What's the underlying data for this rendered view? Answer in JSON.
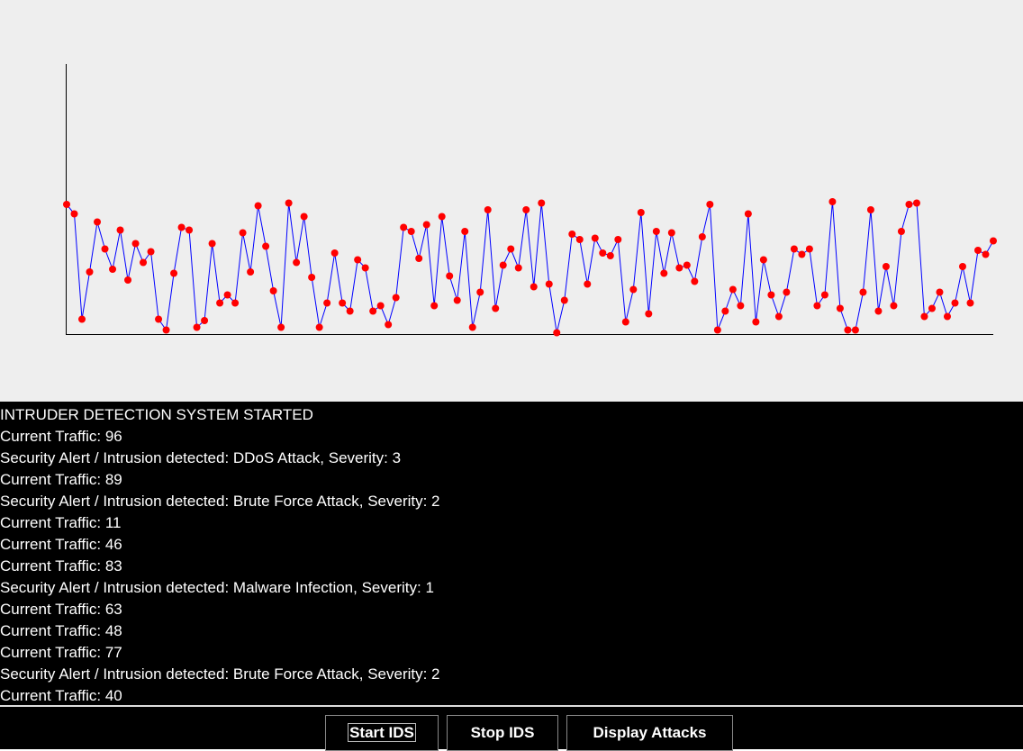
{
  "chart_data": {
    "type": "line",
    "color": "#0000ff",
    "marker_color": "#ff0000",
    "ylim": [
      0,
      200
    ],
    "values": [
      96,
      89,
      11,
      46,
      83,
      63,
      48,
      77,
      40,
      67,
      53,
      61,
      11,
      3,
      45,
      79,
      77,
      5,
      10,
      67,
      23,
      29,
      23,
      75,
      46,
      95,
      65,
      32,
      5,
      97,
      53,
      87,
      42,
      5,
      23,
      60,
      23,
      17,
      55,
      49,
      17,
      21,
      7,
      27,
      79,
      76,
      56,
      81,
      21,
      87,
      43,
      25,
      76,
      5,
      31,
      92,
      19,
      51,
      63,
      49,
      92,
      35,
      97,
      37,
      1,
      25,
      74,
      70,
      37,
      71,
      60,
      58,
      70,
      9,
      33,
      90,
      15,
      76,
      45,
      75,
      49,
      51,
      39,
      72,
      96,
      3,
      17,
      33,
      21,
      89,
      9,
      55,
      29,
      13,
      31,
      63,
      59,
      63,
      21,
      29,
      98,
      19,
      3,
      3,
      31,
      92,
      17,
      50,
      21,
      76,
      96,
      97,
      13,
      19,
      31,
      13,
      23,
      50,
      23,
      62,
      59,
      69
    ]
  },
  "log": [
    "INTRUDER DETECTION SYSTEM STARTED",
    "Current Traffic: 96",
    "Security Alert / Intrusion detected: DDoS Attack, Severity: 3",
    "Current Traffic: 89",
    "Security Alert / Intrusion detected: Brute Force Attack, Severity: 2",
    "Current Traffic: 11",
    "Current Traffic: 46",
    "Current Traffic: 83",
    "Security Alert / Intrusion detected: Malware Infection, Severity: 1",
    "Current Traffic: 63",
    "Current Traffic: 48",
    "Current Traffic: 77",
    "Security Alert / Intrusion detected: Brute Force Attack, Severity: 2",
    "Current Traffic: 40"
  ],
  "buttons": [
    "Start IDS",
    "Stop IDS",
    "Display Attacks"
  ]
}
